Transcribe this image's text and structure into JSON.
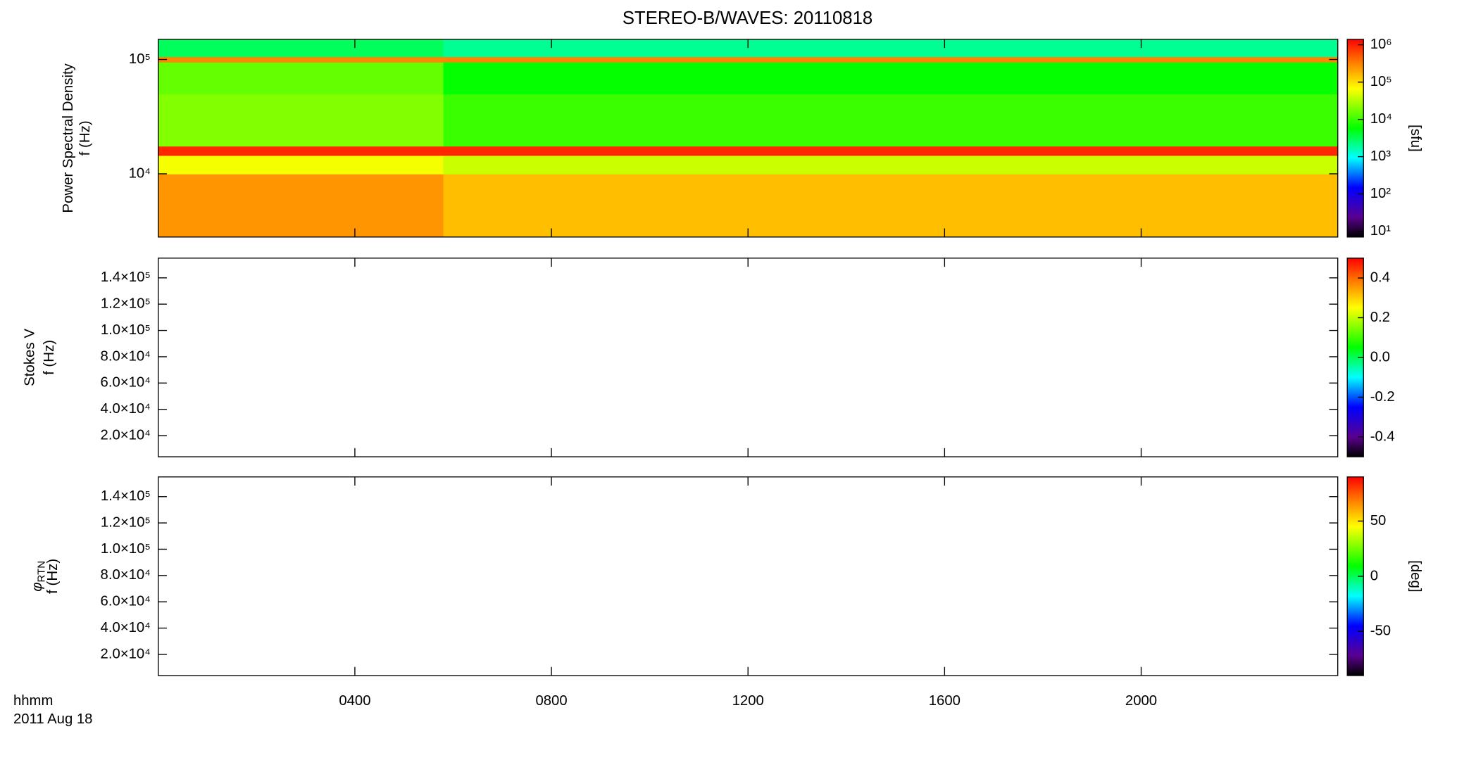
{
  "title": "STEREO-B/WAVES: 20110818",
  "time_label": "hhmm",
  "date_label": "2011 Aug 18",
  "chart_data": [
    {
      "type": "heatmap",
      "ylabel": "Power Spectral Density",
      "yunit": "f (Hz)",
      "ylog": true,
      "xlim": [
        0,
        24
      ],
      "xticks": [
        {
          "value": 4,
          "label": "0400"
        },
        {
          "value": 8,
          "label": "0800"
        },
        {
          "value": 12,
          "label": "1200"
        },
        {
          "value": 16,
          "label": "1600"
        },
        {
          "value": 20,
          "label": "2000"
        }
      ],
      "ylim": [
        2800,
        150000
      ],
      "yticks": [
        {
          "value": 10000,
          "label": "10⁴"
        },
        {
          "value": 100000,
          "label": "10⁵"
        }
      ],
      "x_bins": [
        0,
        5.8,
        24
      ],
      "y_bins": [
        2800,
        10000,
        14500,
        17500,
        50000,
        95000,
        106000,
        150000
      ],
      "z": [
        [
          250000,
          150000
        ],
        [
          60000,
          40000
        ],
        [
          900000,
          900000
        ],
        [
          20000,
          10000
        ],
        [
          15000,
          6000
        ],
        [
          300000,
          300000
        ],
        [
          3000,
          2000
        ]
      ],
      "clog": true,
      "clim": [
        7,
        1400000
      ],
      "cticks": [
        {
          "value": 10,
          "label": "10¹"
        },
        {
          "value": 100,
          "label": "10²"
        },
        {
          "value": 1000,
          "label": "10³"
        },
        {
          "value": 10000,
          "label": "10⁴"
        },
        {
          "value": 100000,
          "label": "10⁵"
        },
        {
          "value": 1000000,
          "label": "10⁶"
        }
      ],
      "clabel": "[sfu]"
    },
    {
      "type": "heatmap",
      "ylabel": "Stokes V",
      "yunit": "f (Hz)",
      "ylog": false,
      "xlim": [
        0,
        24
      ],
      "xticks": [
        {
          "value": 4,
          "label": "0400"
        },
        {
          "value": 8,
          "label": "0800"
        },
        {
          "value": 12,
          "label": "1200"
        },
        {
          "value": 16,
          "label": "1600"
        },
        {
          "value": 20,
          "label": "2000"
        }
      ],
      "ylim": [
        3900,
        155000
      ],
      "yticks": [
        {
          "value": 20000,
          "label": "2.0×10⁴"
        },
        {
          "value": 40000,
          "label": "4.0×10⁴"
        },
        {
          "value": 60000,
          "label": "6.0×10⁴"
        },
        {
          "value": 80000,
          "label": "8.0×10⁴"
        },
        {
          "value": 100000,
          "label": "1.0×10⁵"
        },
        {
          "value": 120000,
          "label": "1.2×10⁵"
        },
        {
          "value": 140000,
          "label": "1.4×10⁵"
        }
      ],
      "clog": false,
      "clim": [
        -0.5,
        0.5
      ],
      "cticks": [
        -0.4,
        -0.2,
        {
          "value": 0,
          "label": "0.0"
        },
        0.2,
        0.4
      ]
    },
    {
      "type": "heatmap",
      "ylabel": "φ",
      "ylabel_sub": "RTN",
      "yunit": "f (Hz)",
      "ylog": false,
      "xlim": [
        0,
        24
      ],
      "xticks": [
        {
          "value": 4,
          "label": "0400"
        },
        {
          "value": 8,
          "label": "0800"
        },
        {
          "value": 12,
          "label": "1200"
        },
        {
          "value": 16,
          "label": "1600"
        },
        {
          "value": 20,
          "label": "2000"
        }
      ],
      "ylim": [
        3900,
        155000
      ],
      "yticks": [
        {
          "value": 20000,
          "label": "2.0×10⁴"
        },
        {
          "value": 40000,
          "label": "4.0×10⁴"
        },
        {
          "value": 60000,
          "label": "6.0×10⁴"
        },
        {
          "value": 80000,
          "label": "8.0×10⁴"
        },
        {
          "value": 100000,
          "label": "1.0×10⁵"
        },
        {
          "value": 120000,
          "label": "1.2×10⁵"
        },
        {
          "value": 140000,
          "label": "1.4×10⁵"
        }
      ],
      "clog": false,
      "clim": [
        -90,
        90
      ],
      "cticks": [
        -50,
        0,
        50
      ],
      "clabel": "[deg]"
    }
  ]
}
